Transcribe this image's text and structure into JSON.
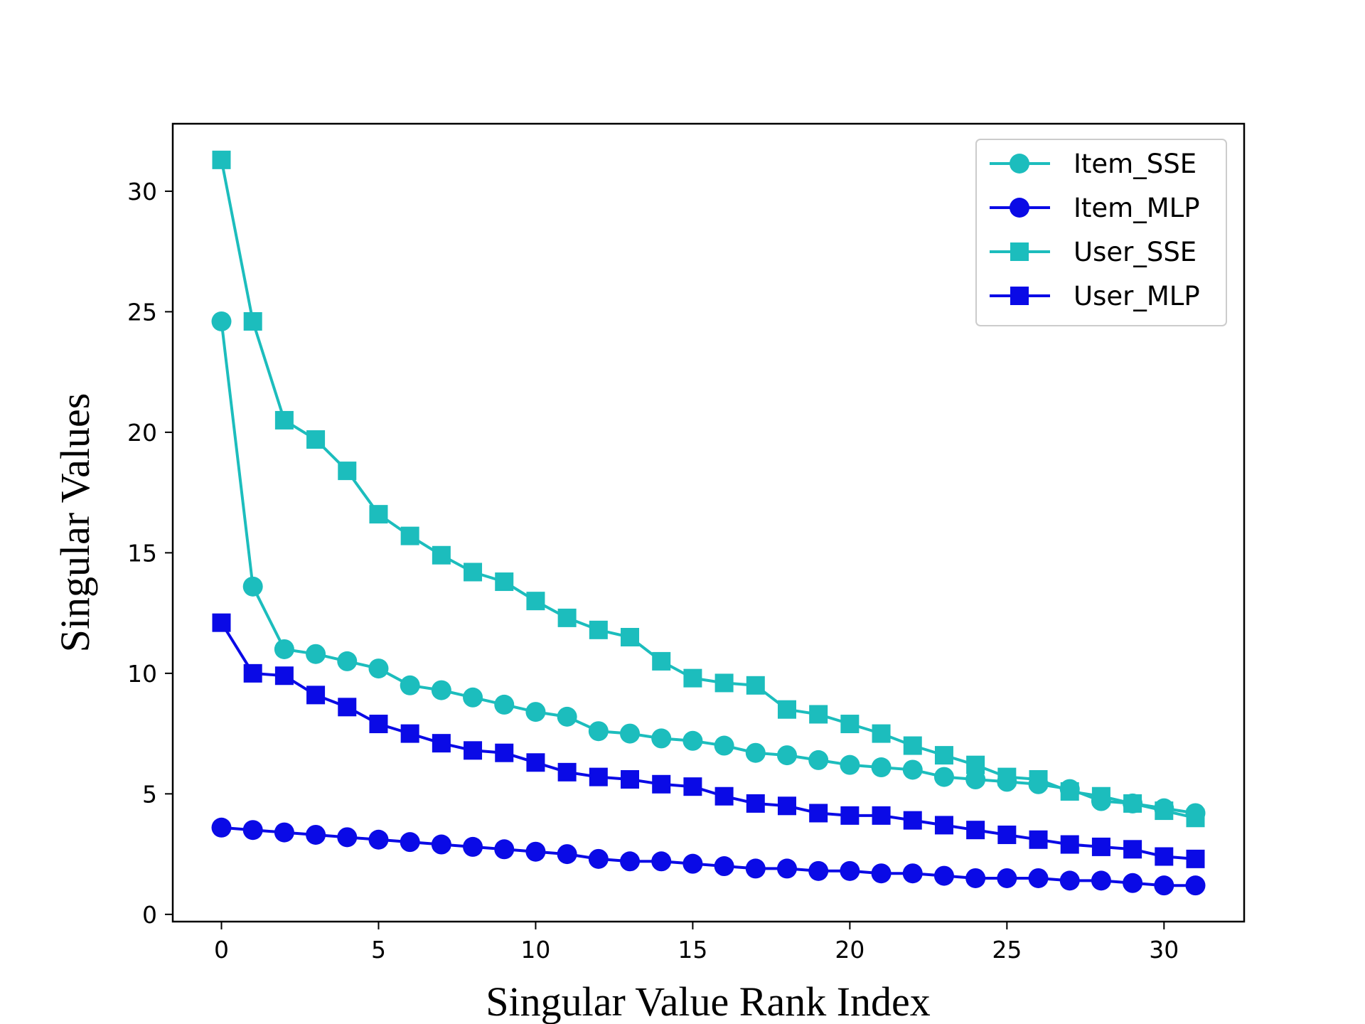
{
  "chart_data": {
    "type": "line",
    "title": "",
    "xlabel": "Singular Value Rank Index",
    "ylabel": "Singular Values",
    "xlim": [
      -1.55,
      32.55
    ],
    "ylim": [
      -0.3,
      32.8
    ],
    "xticks": [
      0,
      5,
      10,
      15,
      20,
      25,
      30
    ],
    "yticks": [
      0,
      5,
      10,
      15,
      20,
      25,
      30
    ],
    "grid": false,
    "legend_position": "top-right",
    "x": [
      0,
      1,
      2,
      3,
      4,
      5,
      6,
      7,
      8,
      9,
      10,
      11,
      12,
      13,
      14,
      15,
      16,
      17,
      18,
      19,
      20,
      21,
      22,
      23,
      24,
      25,
      26,
      27,
      28,
      29,
      30,
      31
    ],
    "series": [
      {
        "name": "Item_SSE",
        "color": "#1cbdbd",
        "marker": "circle",
        "values": [
          24.6,
          13.6,
          11.0,
          10.8,
          10.5,
          10.2,
          9.5,
          9.3,
          9.0,
          8.7,
          8.4,
          8.2,
          7.6,
          7.5,
          7.3,
          7.2,
          7.0,
          6.7,
          6.6,
          6.4,
          6.2,
          6.1,
          6.0,
          5.7,
          5.6,
          5.5,
          5.4,
          5.2,
          4.7,
          4.6,
          4.4,
          4.2
        ]
      },
      {
        "name": "Item_MLP",
        "color": "#0a0ae6",
        "marker": "circle",
        "values": [
          3.6,
          3.5,
          3.4,
          3.3,
          3.2,
          3.1,
          3.0,
          2.9,
          2.8,
          2.7,
          2.6,
          2.5,
          2.3,
          2.2,
          2.2,
          2.1,
          2.0,
          1.9,
          1.9,
          1.8,
          1.8,
          1.7,
          1.7,
          1.6,
          1.5,
          1.5,
          1.5,
          1.4,
          1.4,
          1.3,
          1.2,
          1.2
        ]
      },
      {
        "name": "User_SSE",
        "color": "#1cbdbd",
        "marker": "square",
        "values": [
          31.3,
          24.6,
          20.5,
          19.7,
          18.4,
          16.6,
          15.7,
          14.9,
          14.2,
          13.8,
          13.0,
          12.3,
          11.8,
          11.5,
          10.5,
          9.8,
          9.6,
          9.5,
          8.5,
          8.3,
          7.9,
          7.5,
          7.0,
          6.6,
          6.2,
          5.7,
          5.6,
          5.1,
          4.9,
          4.6,
          4.3,
          4.0
        ]
      },
      {
        "name": "User_MLP",
        "color": "#0a0ae6",
        "marker": "square",
        "values": [
          12.1,
          10.0,
          9.9,
          9.1,
          8.6,
          7.9,
          7.5,
          7.1,
          6.8,
          6.7,
          6.3,
          5.9,
          5.7,
          5.6,
          5.4,
          5.3,
          4.9,
          4.6,
          4.5,
          4.2,
          4.1,
          4.1,
          3.9,
          3.7,
          3.5,
          3.3,
          3.1,
          2.9,
          2.8,
          2.7,
          2.4,
          2.3
        ]
      }
    ]
  }
}
